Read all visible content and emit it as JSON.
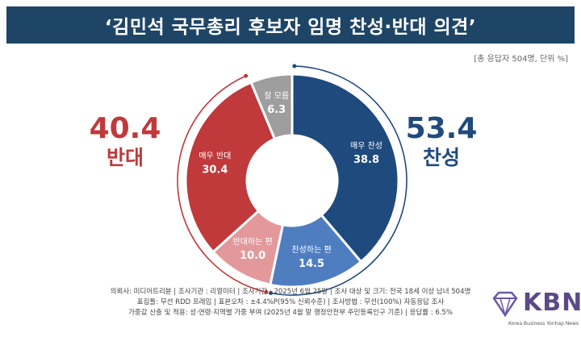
{
  "header": {
    "title": "‘김민석 국무총리 후보자 임명 찬성·반대 의견’"
  },
  "note": "[총 응답자 504명, 단위 %]",
  "summary": {
    "oppose": {
      "value": "40.4",
      "label": "반대"
    },
    "support": {
      "value": "53.4",
      "label": "찬성"
    }
  },
  "chart_data": {
    "type": "pie",
    "categories": [
      "매우 찬성",
      "찬성하는 편",
      "반대하는 편",
      "매우 반대",
      "잘 모름"
    ],
    "values": [
      38.8,
      14.5,
      10.0,
      30.4,
      6.3
    ],
    "title": "‘김민석 국무총리 후보자 임명 찬성·반대 의견’",
    "colors": [
      "#1f4a7d",
      "#4f7ec0",
      "#e3999b",
      "#c0393b",
      "#9e9e9e"
    ],
    "label_colors": [
      "#ffffff",
      "#ffffff",
      "#ffffff",
      "#ffffff",
      "#ffffff"
    ]
  },
  "colors": {
    "title_bg": "#1f4566",
    "oppose": "#c0393b",
    "support": "#1f4a7d"
  },
  "footer": {
    "line1": "의뢰사: 미디어트리뷴 | 조사기관 : 리얼미터 | 조사기간 : 2025년 6월 25일 | 조사 대상 및 크기: 전국 18세 이상 남녀 504명",
    "line2": "표집틀: 무선 RDD 프레임 | 표본오차 : ±4.4%P(95% 신뢰수준) | 조사방법 : 무선(100%) 자동응답 조사",
    "line3": "가중값 산출 및 적용: 성·연령·지역별 가중 부여 (2025년 4월 말 행정안전부 주민등록인구 기준) | 응답률 : 6.5%"
  },
  "logo": {
    "text": "KBN",
    "sub": "Korea Business Yonhap News"
  }
}
